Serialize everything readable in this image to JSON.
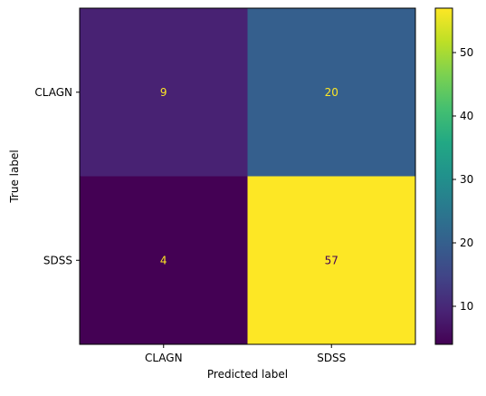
{
  "chart_data": {
    "type": "heatmap",
    "title": "",
    "xlabel": "Predicted label",
    "ylabel": "True label",
    "x_categories": [
      "CLAGN",
      "SDSS"
    ],
    "y_categories": [
      "CLAGN",
      "SDSS"
    ],
    "values": [
      [
        9,
        20
      ],
      [
        4,
        57
      ]
    ],
    "colormap": "viridis",
    "colorbar": {
      "range": [
        4,
        57
      ],
      "ticks": [
        10,
        20,
        30,
        40,
        50
      ]
    },
    "grid": false,
    "text_colors": {
      "on_dark": "#fde725",
      "on_light": "#440154"
    }
  }
}
